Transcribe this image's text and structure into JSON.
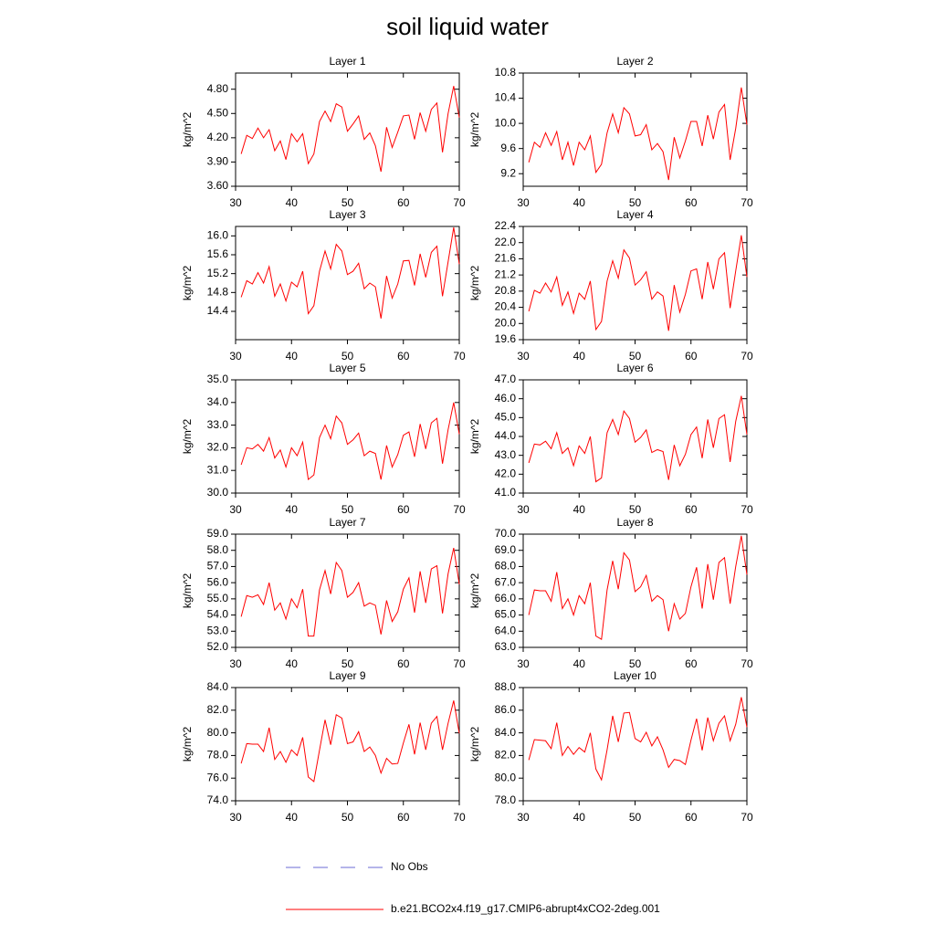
{
  "title": "soil liquid water",
  "legend": [
    {
      "name": "No Obs",
      "color": "#6b6bd6",
      "dash": true
    },
    {
      "name": "b.e21.BCO2x4.f19_g17.CMIP6-abrupt4xCO2-2deg.001",
      "color": "#ff0000",
      "dash": false
    }
  ],
  "chart_data": [
    {
      "type": "line",
      "title": "Layer 1",
      "ylabel": "kg/m^2",
      "color": "#ff0000",
      "x": [
        31,
        32,
        33,
        34,
        35,
        36,
        37,
        38,
        39,
        40,
        41,
        42,
        43,
        44,
        45,
        46,
        47,
        48,
        49,
        50,
        51,
        52,
        53,
        54,
        55,
        56,
        57,
        58,
        59,
        60,
        61,
        62,
        63,
        64,
        65,
        66,
        67,
        68,
        69,
        70
      ],
      "values": [
        4.0,
        4.23,
        4.19,
        4.32,
        4.2,
        4.3,
        4.04,
        4.16,
        3.93,
        4.25,
        4.15,
        4.25,
        3.88,
        4.0,
        4.4,
        4.53,
        4.4,
        4.62,
        4.58,
        4.28,
        4.37,
        4.47,
        4.18,
        4.26,
        4.1,
        3.78,
        4.33,
        4.08,
        4.27,
        4.47,
        4.48,
        4.18,
        4.51,
        4.28,
        4.55,
        4.63,
        4.02,
        4.5,
        4.84,
        4.45
      ],
      "xlim": [
        30,
        70
      ],
      "xticks": [
        30,
        40,
        50,
        60,
        70
      ],
      "ylim": [
        3.6,
        5.0
      ],
      "yticks": [
        {
          "value": 3.6,
          "label": "3.60"
        },
        {
          "value": 3.9,
          "label": "3.90"
        },
        {
          "value": 4.2,
          "label": "4.20"
        },
        {
          "value": 4.5,
          "label": "4.50"
        },
        {
          "value": 4.8,
          "label": "4.80"
        }
      ]
    },
    {
      "type": "line",
      "title": "Layer 2",
      "ylabel": "kg/m^2",
      "color": "#ff0000",
      "x": [
        31,
        32,
        33,
        34,
        35,
        36,
        37,
        38,
        39,
        40,
        41,
        42,
        43,
        44,
        45,
        46,
        47,
        48,
        49,
        50,
        51,
        52,
        53,
        54,
        55,
        56,
        57,
        58,
        59,
        60,
        61,
        62,
        63,
        64,
        65,
        66,
        67,
        68,
        69,
        70
      ],
      "values": [
        9.38,
        9.7,
        9.62,
        9.85,
        9.65,
        9.87,
        9.42,
        9.7,
        9.33,
        9.7,
        9.58,
        9.8,
        9.22,
        9.35,
        9.85,
        10.15,
        9.85,
        10.25,
        10.15,
        9.8,
        9.82,
        9.98,
        9.58,
        9.68,
        9.55,
        9.1,
        9.78,
        9.45,
        9.72,
        10.03,
        10.03,
        9.64,
        10.13,
        9.75,
        10.18,
        10.3,
        9.42,
        9.92,
        10.57,
        9.98
      ],
      "xlim": [
        30,
        70
      ],
      "xticks": [
        30,
        40,
        50,
        60,
        70
      ],
      "ylim": [
        9.0,
        10.8
      ],
      "yticks": [
        9.2,
        9.6,
        {
          "value": 10.0,
          "label": "10.0"
        },
        10.4,
        10.8
      ]
    },
    {
      "type": "line",
      "title": "Layer 3",
      "ylabel": "kg/m^2",
      "color": "#ff0000",
      "x": [
        31,
        32,
        33,
        34,
        35,
        36,
        37,
        38,
        39,
        40,
        41,
        42,
        43,
        44,
        45,
        46,
        47,
        48,
        49,
        50,
        51,
        52,
        53,
        54,
        55,
        56,
        57,
        58,
        59,
        60,
        61,
        62,
        63,
        64,
        65,
        66,
        67,
        68,
        69,
        70
      ],
      "values": [
        14.7,
        15.05,
        14.98,
        15.22,
        15.0,
        15.35,
        14.72,
        14.98,
        14.62,
        15.02,
        14.92,
        15.25,
        14.35,
        14.52,
        15.25,
        15.68,
        15.3,
        15.82,
        15.68,
        15.18,
        15.25,
        15.42,
        14.88,
        15.0,
        14.92,
        14.25,
        15.15,
        14.68,
        14.98,
        15.47,
        15.48,
        14.95,
        15.62,
        15.12,
        15.65,
        15.78,
        14.72,
        15.45,
        16.18,
        15.4
      ],
      "xlim": [
        30,
        70
      ],
      "xticks": [
        30,
        40,
        50,
        60,
        70
      ],
      "ylim": [
        13.8,
        16.2
      ],
      "yticks": [
        14.4,
        14.8,
        15.2,
        15.6,
        {
          "value": 16.0,
          "label": "16.0"
        }
      ]
    },
    {
      "type": "line",
      "title": "Layer 4",
      "ylabel": "kg/m^2",
      "color": "#ff0000",
      "x": [
        31,
        32,
        33,
        34,
        35,
        36,
        37,
        38,
        39,
        40,
        41,
        42,
        43,
        44,
        45,
        46,
        47,
        48,
        49,
        50,
        51,
        52,
        53,
        54,
        55,
        56,
        57,
        58,
        59,
        60,
        61,
        62,
        63,
        64,
        65,
        66,
        67,
        68,
        69,
        70
      ],
      "values": [
        20.3,
        20.82,
        20.75,
        21.0,
        20.78,
        21.15,
        20.45,
        20.78,
        20.25,
        20.75,
        20.6,
        21.05,
        19.85,
        20.05,
        21.05,
        21.55,
        21.12,
        21.82,
        21.62,
        20.95,
        21.08,
        21.28,
        20.6,
        20.78,
        20.68,
        19.82,
        20.95,
        20.28,
        20.72,
        21.3,
        21.35,
        20.6,
        21.52,
        20.85,
        21.6,
        21.75,
        20.38,
        21.3,
        22.18,
        21.15
      ],
      "xlim": [
        30,
        70
      ],
      "xticks": [
        30,
        40,
        50,
        60,
        70
      ],
      "ylim": [
        19.6,
        22.4
      ],
      "yticks": [
        19.6,
        {
          "value": 20.0,
          "label": "20.0"
        },
        20.4,
        20.8,
        21.2,
        21.6,
        {
          "value": 22.0,
          "label": "22.0"
        },
        22.4
      ]
    },
    {
      "type": "line",
      "title": "Layer 5",
      "ylabel": "kg/m^2",
      "color": "#ff0000",
      "x": [
        31,
        32,
        33,
        34,
        35,
        36,
        37,
        38,
        39,
        40,
        41,
        42,
        43,
        44,
        45,
        46,
        47,
        48,
        49,
        50,
        51,
        52,
        53,
        54,
        55,
        56,
        57,
        58,
        59,
        60,
        61,
        62,
        63,
        64,
        65,
        66,
        67,
        68,
        69,
        70
      ],
      "values": [
        31.25,
        32.0,
        31.95,
        32.15,
        31.85,
        32.45,
        31.55,
        31.9,
        31.15,
        32.0,
        31.65,
        32.25,
        30.6,
        30.8,
        32.45,
        33.0,
        32.4,
        33.4,
        33.1,
        32.15,
        32.35,
        32.65,
        31.65,
        31.85,
        31.75,
        30.6,
        32.1,
        31.15,
        31.7,
        32.55,
        32.7,
        31.6,
        33.05,
        31.95,
        33.1,
        33.3,
        31.3,
        32.8,
        34.0,
        32.6
      ],
      "xlim": [
        30,
        70
      ],
      "xticks": [
        30,
        40,
        50,
        60,
        70
      ],
      "ylim": [
        30,
        35
      ],
      "yticks": [
        {
          "value": 30,
          "label": "30.0"
        },
        {
          "value": 31,
          "label": "31.0"
        },
        {
          "value": 32,
          "label": "32.0"
        },
        {
          "value": 33,
          "label": "33.0"
        },
        {
          "value": 34,
          "label": "34.0"
        },
        {
          "value": 35,
          "label": "35.0"
        }
      ]
    },
    {
      "type": "line",
      "title": "Layer 6",
      "ylabel": "kg/m^2",
      "color": "#ff0000",
      "x": [
        31,
        32,
        33,
        34,
        35,
        36,
        37,
        38,
        39,
        40,
        41,
        42,
        43,
        44,
        45,
        46,
        47,
        48,
        49,
        50,
        51,
        52,
        53,
        54,
        55,
        56,
        57,
        58,
        59,
        60,
        61,
        62,
        63,
        64,
        65,
        66,
        67,
        68,
        69,
        70
      ],
      "values": [
        42.6,
        43.6,
        43.55,
        43.75,
        43.35,
        44.2,
        43.1,
        43.4,
        42.45,
        43.5,
        43.1,
        44.0,
        41.6,
        41.8,
        44.2,
        44.9,
        44.1,
        45.35,
        44.95,
        43.7,
        43.95,
        44.35,
        43.15,
        43.3,
        43.2,
        41.7,
        43.55,
        42.45,
        43.05,
        44.1,
        44.5,
        42.85,
        44.9,
        43.4,
        44.95,
        45.15,
        42.65,
        44.8,
        46.15,
        44.1
      ],
      "xlim": [
        30,
        70
      ],
      "xticks": [
        30,
        40,
        50,
        60,
        70
      ],
      "ylim": [
        41,
        47
      ],
      "yticks": [
        {
          "value": 41,
          "label": "41.0"
        },
        {
          "value": 42,
          "label": "42.0"
        },
        {
          "value": 43,
          "label": "43.0"
        },
        {
          "value": 44,
          "label": "44.0"
        },
        {
          "value": 45,
          "label": "45.0"
        },
        {
          "value": 46,
          "label": "46.0"
        },
        {
          "value": 47,
          "label": "47.0"
        }
      ]
    },
    {
      "type": "line",
      "title": "Layer 7",
      "ylabel": "kg/m^2",
      "color": "#ff0000",
      "x": [
        31,
        32,
        33,
        34,
        35,
        36,
        37,
        38,
        39,
        40,
        41,
        42,
        43,
        44,
        45,
        46,
        47,
        48,
        49,
        50,
        51,
        52,
        53,
        54,
        55,
        56,
        57,
        58,
        59,
        60,
        61,
        62,
        63,
        64,
        65,
        66,
        67,
        68,
        69,
        70
      ],
      "values": [
        53.9,
        55.2,
        55.1,
        55.25,
        54.65,
        56.0,
        54.3,
        54.75,
        53.75,
        55.0,
        54.45,
        55.6,
        52.7,
        52.7,
        55.55,
        56.75,
        55.3,
        57.25,
        56.75,
        55.1,
        55.4,
        56.0,
        54.55,
        54.75,
        54.6,
        52.8,
        54.9,
        53.6,
        54.2,
        55.6,
        56.3,
        54.15,
        56.7,
        54.75,
        56.85,
        57.05,
        54.1,
        56.55,
        58.15,
        55.9
      ],
      "xlim": [
        30,
        70
      ],
      "xticks": [
        30,
        40,
        50,
        60,
        70
      ],
      "ylim": [
        52,
        59
      ],
      "yticks": [
        {
          "value": 52,
          "label": "52.0"
        },
        {
          "value": 53,
          "label": "53.0"
        },
        {
          "value": 54,
          "label": "54.0"
        },
        {
          "value": 55,
          "label": "55.0"
        },
        {
          "value": 56,
          "label": "56.0"
        },
        {
          "value": 57,
          "label": "57.0"
        },
        {
          "value": 58,
          "label": "58.0"
        },
        {
          "value": 59,
          "label": "59.0"
        }
      ]
    },
    {
      "type": "line",
      "title": "Layer 8",
      "ylabel": "kg/m^2",
      "color": "#ff0000",
      "x": [
        31,
        32,
        33,
        34,
        35,
        36,
        37,
        38,
        39,
        40,
        41,
        42,
        43,
        44,
        45,
        46,
        47,
        48,
        49,
        50,
        51,
        52,
        53,
        54,
        55,
        56,
        57,
        58,
        59,
        60,
        61,
        62,
        63,
        64,
        65,
        66,
        67,
        68,
        69,
        70
      ],
      "values": [
        65.0,
        66.55,
        66.5,
        66.5,
        65.85,
        67.65,
        65.4,
        66.0,
        65.0,
        66.2,
        65.7,
        67.0,
        63.7,
        63.5,
        66.55,
        68.35,
        66.6,
        68.85,
        68.4,
        66.45,
        66.75,
        67.45,
        65.85,
        66.2,
        65.95,
        64.0,
        65.7,
        64.75,
        65.1,
        66.75,
        67.95,
        65.4,
        68.15,
        65.95,
        68.25,
        68.55,
        65.7,
        68.0,
        69.9,
        67.5
      ],
      "xlim": [
        30,
        70
      ],
      "xticks": [
        30,
        40,
        50,
        60,
        70
      ],
      "ylim": [
        63,
        70
      ],
      "yticks": [
        {
          "value": 63,
          "label": "63.0"
        },
        {
          "value": 64,
          "label": "64.0"
        },
        {
          "value": 65,
          "label": "65.0"
        },
        {
          "value": 66,
          "label": "66.0"
        },
        {
          "value": 67,
          "label": "67.0"
        },
        {
          "value": 68,
          "label": "68.0"
        },
        {
          "value": 69,
          "label": "69.0"
        },
        {
          "value": 70,
          "label": "70.0"
        }
      ]
    },
    {
      "type": "line",
      "title": "Layer 9",
      "ylabel": "kg/m^2",
      "color": "#ff0000",
      "x": [
        31,
        32,
        33,
        34,
        35,
        36,
        37,
        38,
        39,
        40,
        41,
        42,
        43,
        44,
        45,
        46,
        47,
        48,
        49,
        50,
        51,
        52,
        53,
        54,
        55,
        56,
        57,
        58,
        59,
        60,
        61,
        62,
        63,
        64,
        65,
        66,
        67,
        68,
        69,
        70
      ],
      "values": [
        77.3,
        79.05,
        79.0,
        79.0,
        78.35,
        80.45,
        77.65,
        78.35,
        77.4,
        78.5,
        78.0,
        79.6,
        76.1,
        75.7,
        78.45,
        81.15,
        78.95,
        81.6,
        81.3,
        79.05,
        79.2,
        80.1,
        78.35,
        78.75,
        78.0,
        76.45,
        77.75,
        77.25,
        77.3,
        79.1,
        80.75,
        78.1,
        80.9,
        78.5,
        80.85,
        81.45,
        78.5,
        80.85,
        82.85,
        79.95
      ],
      "xlim": [
        30,
        70
      ],
      "xticks": [
        30,
        40,
        50,
        60,
        70
      ],
      "ylim": [
        74,
        84
      ],
      "yticks": [
        {
          "value": 74,
          "label": "74.0"
        },
        {
          "value": 76,
          "label": "76.0"
        },
        {
          "value": 78,
          "label": "78.0"
        },
        {
          "value": 80,
          "label": "80.0"
        },
        {
          "value": 82,
          "label": "82.0"
        },
        {
          "value": 84,
          "label": "84.0"
        }
      ]
    },
    {
      "type": "line",
      "title": "Layer 10",
      "ylabel": "kg/m^2",
      "color": "#ff0000",
      "x": [
        31,
        32,
        33,
        34,
        35,
        36,
        37,
        38,
        39,
        40,
        41,
        42,
        43,
        44,
        45,
        46,
        47,
        48,
        49,
        50,
        51,
        52,
        53,
        54,
        55,
        56,
        57,
        58,
        59,
        60,
        61,
        62,
        63,
        64,
        65,
        66,
        67,
        68,
        69,
        70
      ],
      "values": [
        81.6,
        83.4,
        83.35,
        83.3,
        82.6,
        84.9,
        82.0,
        82.8,
        82.1,
        82.7,
        82.3,
        84.0,
        80.8,
        79.85,
        82.5,
        85.5,
        83.2,
        85.75,
        85.8,
        83.5,
        83.2,
        84.05,
        82.85,
        83.65,
        82.5,
        80.95,
        81.65,
        81.55,
        81.2,
        83.35,
        85.25,
        82.45,
        85.35,
        83.3,
        84.85,
        85.5,
        83.3,
        84.75,
        87.15,
        84.5
      ],
      "xlim": [
        30,
        70
      ],
      "xticks": [
        30,
        40,
        50,
        60,
        70
      ],
      "ylim": [
        78,
        88
      ],
      "yticks": [
        {
          "value": 78,
          "label": "78.0"
        },
        {
          "value": 80,
          "label": "80.0"
        },
        {
          "value": 82,
          "label": "82.0"
        },
        {
          "value": 84,
          "label": "84.0"
        },
        {
          "value": 86,
          "label": "86.0"
        },
        {
          "value": 88,
          "label": "88.0"
        }
      ]
    }
  ]
}
